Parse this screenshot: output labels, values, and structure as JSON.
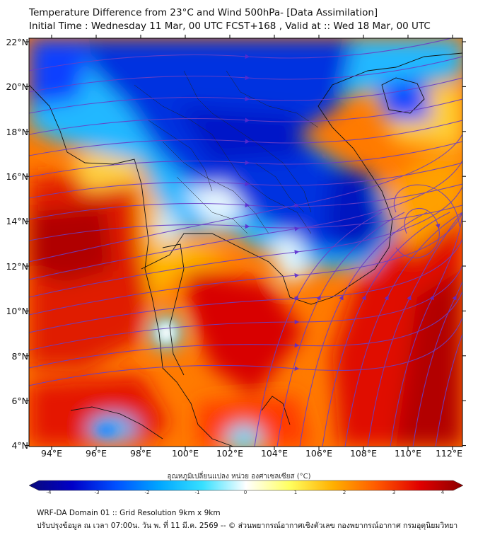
{
  "header": {
    "title": "Temperature Difference from 23°C and Wind 500hPa- [Data Assimilation]",
    "subtitle": "Initial Time : Wednesday 11 Mar, 00 UTC FCST+168 , Valid at ::  Wed 18 Mar, 00 UTC"
  },
  "map": {
    "lat_labels": [
      "22°N",
      "20°N",
      "18°N",
      "16°N",
      "14°N",
      "12°N",
      "10°N",
      "8°N",
      "6°N",
      "4°N"
    ],
    "lon_labels": [
      "94°E",
      "96°E",
      "98°E",
      "100°E",
      "102°E",
      "104°E",
      "106°E",
      "108°E",
      "110°E",
      "112°E"
    ],
    "lat_range": [
      4,
      22.3
    ],
    "lon_range": [
      93,
      112.5
    ],
    "streamline_color": "#6a3fc4"
  },
  "colorbar": {
    "title": "อุณหภูมิเปลี่ยนแปลง หน่วย องศาเซลเซียส (°C)",
    "ticks": [
      "-4",
      "-3",
      "-2",
      "-1",
      "0",
      "1",
      "2",
      "3",
      "4"
    ],
    "range": [
      -4,
      4
    ],
    "colors": [
      "#0a0a7a",
      "#0000c8",
      "#0050ff",
      "#00a6ff",
      "#37e0ff",
      "#ffffff",
      "#ffff60",
      "#ffb000",
      "#ff5a00",
      "#e10000",
      "#8c0000"
    ]
  },
  "footer": {
    "line1": "WRF-DA Domain 01 :: Grid Resolution 9km x 9km",
    "line2": "ปรับปรุงข้อมูล ณ เวลา 07:00น. วัน พ. ที่ 11 มี.ค. 2569 -- © ส่วนพยากรณ์อากาศเชิงตัวเลข กองพยากรณ์อากาศ กรมอุตุนิยมวิทยา"
  }
}
